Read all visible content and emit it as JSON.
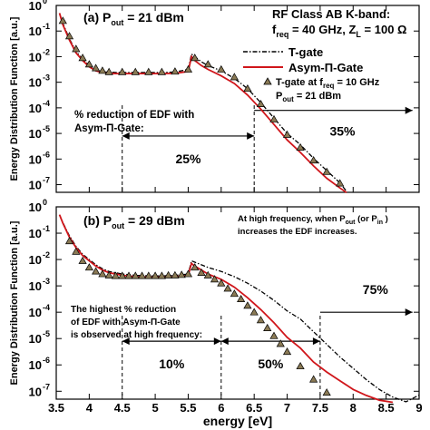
{
  "ylabel_top": "Energy Distribution Function [a.u.]",
  "ylabel_bottom": "Energy Distribution Function [a.u.]",
  "xlabel": "energy [eV]",
  "x_ticks": [
    "3.5",
    "4",
    "4.5",
    "5",
    "5.5",
    "6",
    "6.5",
    "7",
    "7.5",
    "8",
    "8.5",
    "9"
  ],
  "y_ticks": [
    "10",
    "10",
    "10",
    "10",
    "10",
    "10",
    "10",
    "10"
  ],
  "y_tick_exponents": [
    "0",
    "-1",
    "-2",
    "-3",
    "-4",
    "-5",
    "-6",
    "-7"
  ],
  "colors": {
    "tgate": "#000000",
    "asym": "#d0161b",
    "triangle": "#000000"
  },
  "chart_data": [
    {
      "type": "line",
      "panel_label": "(a) P",
      "panel_label_sub": "out",
      "panel_label_rest": " = 21 dBm",
      "title_lines": [
        "RF Class AB K-band:",
        "f",
        "req",
        " = 40 GHz, Z",
        "L",
        " = 100 Ω"
      ],
      "legend": {
        "tgate": "T-gate",
        "asym_prefix": "Asym-",
        "asym_pi": "Π",
        "asym_suffix": "-Gate",
        "tri_line1a": "T-gate at  f",
        "tri_line1_sub": "req",
        "tri_line1b": " = 10 GHz",
        "tri_line2a": "P",
        "tri_line2_sub": "out",
        "tri_line2b": " = 21 dBm"
      },
      "annotation_lines": [
        "% reduction of EDF with",
        "Asym-Π-Gate:"
      ],
      "region_labels": [
        "25%",
        "35%"
      ],
      "xlim": [
        3.5,
        9
      ],
      "ylim_log10": [
        -7.3,
        0
      ],
      "series": [
        {
          "name": "T-gate",
          "x": [
            3.55,
            3.6,
            3.7,
            3.8,
            3.9,
            4.0,
            4.1,
            4.2,
            4.3,
            4.4,
            4.5,
            4.7,
            4.9,
            5.1,
            5.3,
            5.5,
            5.55,
            5.6,
            5.7,
            5.8,
            6.0,
            6.2,
            6.4,
            6.6,
            6.8,
            7.0,
            7.2,
            7.4,
            7.6,
            7.8,
            7.9
          ],
          "y_log10": [
            -0.3,
            -0.7,
            -1.3,
            -1.8,
            -2.1,
            -2.35,
            -2.5,
            -2.6,
            -2.6,
            -2.62,
            -2.62,
            -2.62,
            -2.62,
            -2.62,
            -2.6,
            -2.5,
            -1.9,
            -2.0,
            -2.2,
            -2.35,
            -2.55,
            -2.85,
            -3.25,
            -3.8,
            -4.4,
            -5.0,
            -5.5,
            -6.0,
            -6.45,
            -6.9,
            -7.2
          ]
        },
        {
          "name": "Asym-Π-Gate",
          "x": [
            3.55,
            3.6,
            3.7,
            3.8,
            3.9,
            4.0,
            4.1,
            4.2,
            4.3,
            4.4,
            4.5,
            4.7,
            4.9,
            5.1,
            5.3,
            5.5,
            5.55,
            5.6,
            5.7,
            5.8,
            6.0,
            6.2,
            6.4,
            6.6,
            6.8,
            7.0,
            7.2,
            7.4,
            7.6,
            7.8,
            7.9
          ],
          "y_log10": [
            -0.3,
            -0.75,
            -1.35,
            -1.85,
            -2.15,
            -2.4,
            -2.55,
            -2.62,
            -2.65,
            -2.66,
            -2.66,
            -2.66,
            -2.66,
            -2.66,
            -2.65,
            -2.58,
            -2.0,
            -2.15,
            -2.35,
            -2.5,
            -2.75,
            -3.05,
            -3.5,
            -4.05,
            -4.65,
            -5.25,
            -5.8,
            -6.3,
            -6.75,
            -7.1,
            -7.25
          ]
        },
        {
          "name": "T-gate at f_req = 10 GHz, P_out = 21 dBm",
          "x": [
            3.6,
            3.7,
            3.8,
            3.9,
            4.0,
            4.1,
            4.2,
            4.3,
            4.5,
            4.7,
            4.9,
            5.1,
            5.3,
            5.5,
            5.6,
            5.8,
            6.0,
            6.2,
            6.4,
            6.6,
            6.8,
            7.0,
            7.2,
            7.4,
            7.6,
            7.8
          ],
          "y_log10": [
            -0.6,
            -1.2,
            -1.7,
            -2.05,
            -2.3,
            -2.45,
            -2.55,
            -2.6,
            -2.6,
            -2.6,
            -2.6,
            -2.6,
            -2.58,
            -2.5,
            -2.05,
            -2.3,
            -2.5,
            -2.8,
            -3.25,
            -3.85,
            -4.45,
            -5.05,
            -5.55,
            -6.05,
            -6.5,
            -6.95
          ]
        }
      ],
      "region_markers_x": [
        4.5,
        6.5
      ],
      "region_arrows": [
        [
          4.5,
          6.5
        ],
        [
          6.5,
          8.9
        ]
      ]
    },
    {
      "type": "line",
      "panel_label": "(b) P",
      "panel_label_sub": "out",
      "panel_label_rest": " = 29 dBm",
      "note_lines": [
        "At high frequency, when P",
        "out",
        " (or  P",
        "in",
        " )",
        "increases the EDF increases."
      ],
      "annotation_lines": [
        "The highest % reduction",
        "of EDF with Asym-Π-Gate",
        "is observed at high frequency:"
      ],
      "region_labels": [
        "10%",
        "50%",
        "75%"
      ],
      "xlim": [
        3.5,
        9
      ],
      "ylim_log10": [
        -7.3,
        0
      ],
      "series": [
        {
          "name": "T-gate",
          "x": [
            3.55,
            3.6,
            3.7,
            3.8,
            3.9,
            4.0,
            4.1,
            4.2,
            4.3,
            4.5,
            4.7,
            4.9,
            5.1,
            5.3,
            5.5,
            5.55,
            5.6,
            5.7,
            5.8,
            6.0,
            6.2,
            6.4,
            6.6,
            6.8,
            7.0,
            7.2,
            7.4,
            7.6,
            7.8,
            8.0,
            8.2,
            8.4,
            8.6,
            8.8,
            9.0
          ],
          "y_log10": [
            -0.3,
            -0.6,
            -1.1,
            -1.5,
            -1.8,
            -2.0,
            -2.2,
            -2.35,
            -2.45,
            -2.55,
            -2.6,
            -2.62,
            -2.62,
            -2.6,
            -2.55,
            -2.05,
            -2.1,
            -2.2,
            -2.3,
            -2.45,
            -2.65,
            -2.9,
            -3.2,
            -3.55,
            -3.95,
            -4.35,
            -4.8,
            -5.25,
            -5.7,
            -6.1,
            -6.5,
            -6.85,
            -7.1,
            -7.25,
            -7.3
          ]
        },
        {
          "name": "Asym-Π-Gate",
          "x": [
            3.55,
            3.6,
            3.7,
            3.8,
            3.9,
            4.0,
            4.1,
            4.2,
            4.3,
            4.5,
            4.7,
            4.9,
            5.1,
            5.3,
            5.5,
            5.55,
            5.6,
            5.7,
            5.8,
            6.0,
            6.2,
            6.4,
            6.6,
            6.8,
            7.0,
            7.2,
            7.4,
            7.6,
            7.8,
            8.0,
            8.2,
            8.4,
            8.6
          ],
          "y_log10": [
            -0.3,
            -0.62,
            -1.15,
            -1.55,
            -1.85,
            -2.05,
            -2.25,
            -2.4,
            -2.5,
            -2.6,
            -2.65,
            -2.67,
            -2.67,
            -2.65,
            -2.6,
            -2.15,
            -2.25,
            -2.4,
            -2.55,
            -2.75,
            -3.05,
            -3.45,
            -3.9,
            -4.4,
            -4.95,
            -5.45,
            -5.95,
            -6.3,
            -6.6,
            -6.9,
            -7.1,
            -7.25,
            -7.3
          ]
        },
        {
          "name": "T-gate at f_req = 10 GHz, P_out = 21 dBm",
          "x": [
            3.7,
            3.8,
            3.9,
            4.0,
            4.1,
            4.2,
            4.3,
            4.4,
            4.5,
            4.6,
            4.7,
            4.8,
            4.9,
            5.0,
            5.1,
            5.2,
            5.3,
            5.4,
            5.5,
            5.6,
            5.7,
            5.8,
            5.9,
            6.0,
            6.1,
            6.2,
            6.3,
            6.4,
            6.5,
            6.6,
            6.7,
            6.8,
            6.9,
            7.0,
            7.2,
            7.4,
            7.6
          ],
          "y_log10": [
            -1.3,
            -1.7,
            -2.05,
            -2.3,
            -2.45,
            -2.55,
            -2.6,
            -2.62,
            -2.62,
            -2.62,
            -2.62,
            -2.62,
            -2.62,
            -2.62,
            -2.62,
            -2.6,
            -2.6,
            -2.58,
            -2.55,
            -2.3,
            -2.5,
            -2.6,
            -2.75,
            -2.9,
            -3.1,
            -3.3,
            -3.5,
            -3.75,
            -4.0,
            -4.3,
            -4.6,
            -4.9,
            -5.2,
            -5.5,
            -6.05,
            -6.55,
            -7.05
          ]
        }
      ],
      "region_markers_x": [
        4.5,
        6.0,
        7.5
      ],
      "region_arrows": [
        [
          4.5,
          6.0
        ],
        [
          6.0,
          7.5
        ],
        [
          7.5,
          8.9
        ]
      ]
    }
  ]
}
